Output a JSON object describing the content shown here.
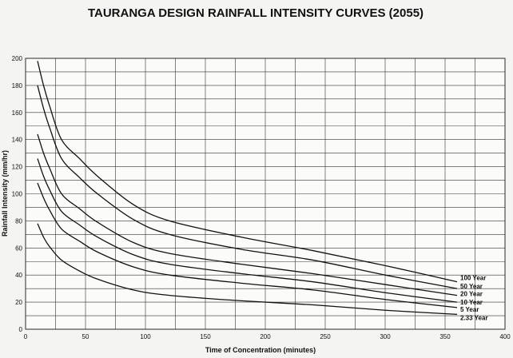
{
  "chart_data": {
    "type": "line",
    "title": "TAURANGA DESIGN RAINFALL INTENSITY CURVES (2055)",
    "xlabel": "Time of Concentration (minutes)",
    "ylabel": "Rainfall Intensity (mm/hr)",
    "xlim": [
      0,
      400
    ],
    "ylim": [
      0,
      200
    ],
    "xticks": [
      0,
      50,
      100,
      150,
      200,
      250,
      300,
      350,
      400
    ],
    "yticks": [
      0,
      20,
      40,
      60,
      80,
      100,
      120,
      140,
      160,
      180,
      200
    ],
    "grid": true,
    "series": [
      {
        "name": "100 Year",
        "x": [
          10,
          15,
          20,
          30,
          45,
          60,
          90,
          120,
          180,
          240,
          300,
          360
        ],
        "y": [
          198,
          180,
          165,
          140,
          126,
          113,
          92,
          80,
          68,
          58,
          47,
          35
        ]
      },
      {
        "name": "50 Year",
        "x": [
          10,
          15,
          20,
          30,
          45,
          60,
          90,
          120,
          180,
          240,
          300,
          360
        ],
        "y": [
          180,
          163,
          149,
          126,
          112,
          100,
          81,
          70,
          59,
          51,
          40,
          30
        ]
      },
      {
        "name": "20 Year",
        "x": [
          10,
          15,
          20,
          30,
          45,
          60,
          90,
          120,
          180,
          240,
          300,
          360
        ],
        "y": [
          144,
          130,
          119,
          100,
          89,
          79,
          64,
          56,
          48,
          41,
          33,
          25
        ]
      },
      {
        "name": "10 Year",
        "x": [
          10,
          15,
          20,
          30,
          45,
          60,
          90,
          120,
          180,
          240,
          300,
          360
        ],
        "y": [
          126,
          113,
          103,
          87,
          77,
          68,
          55,
          48,
          41,
          35,
          27,
          20
        ]
      },
      {
        "name": "5 Year",
        "x": [
          10,
          15,
          20,
          30,
          45,
          60,
          90,
          120,
          180,
          240,
          300,
          360
        ],
        "y": [
          108,
          97,
          88,
          74,
          65,
          57,
          46,
          40,
          34,
          29,
          22,
          16
        ]
      },
      {
        "name": "2.33 Year",
        "x": [
          10,
          15,
          20,
          30,
          45,
          60,
          90,
          120,
          180,
          240,
          300,
          360
        ],
        "y": [
          78,
          68,
          61,
          51,
          43,
          37,
          29,
          25,
          21,
          18,
          14,
          11
        ]
      }
    ]
  }
}
